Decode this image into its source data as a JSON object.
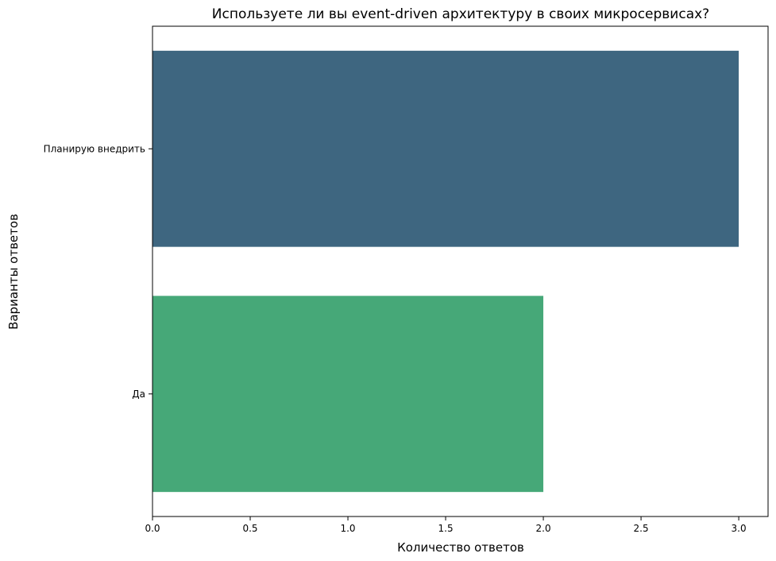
{
  "chart_data": {
    "type": "bar",
    "orientation": "horizontal",
    "title": "Используете ли вы event-driven архитектуру в своих микросервисах?",
    "xlabel": "Количество ответов",
    "ylabel": "Варианты ответов",
    "categories": [
      "Планирую внедрить",
      "Да"
    ],
    "values": [
      3,
      2
    ],
    "colors": [
      "#3e6680",
      "#46a878"
    ],
    "xlim": [
      0,
      3.15
    ],
    "xticks": [
      0.0,
      0.5,
      1.0,
      1.5,
      2.0,
      2.5,
      3.0
    ],
    "xtick_labels": [
      "0.0",
      "0.5",
      "1.0",
      "1.5",
      "2.0",
      "2.5",
      "3.0"
    ],
    "grid": false,
    "legend": "none"
  }
}
